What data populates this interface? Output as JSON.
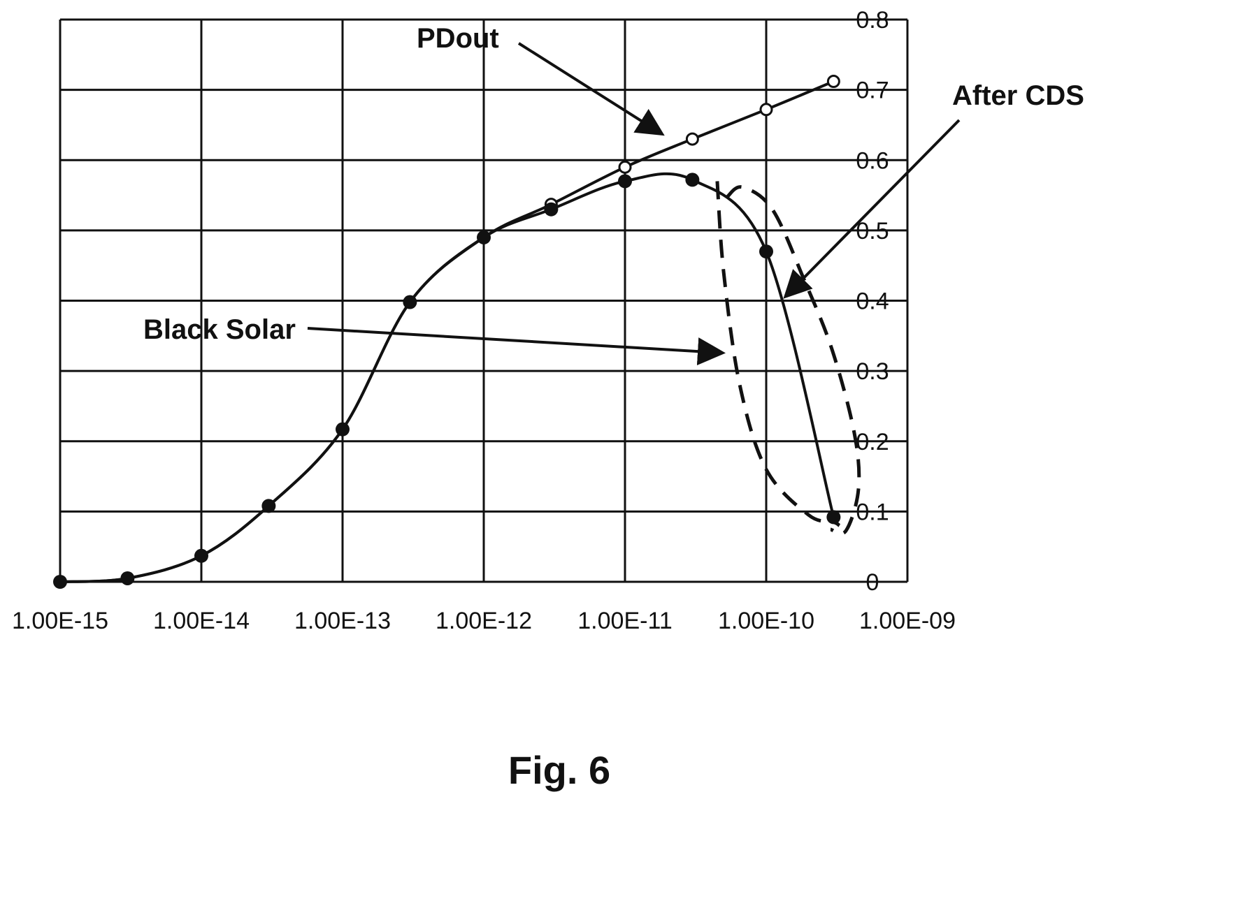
{
  "figure": {
    "caption": "Fig. 6"
  },
  "chart_data": {
    "type": "line",
    "x_scale": "log",
    "x_ticks": [
      "1.00E-15",
      "1.00E-14",
      "1.00E-13",
      "1.00E-12",
      "1.00E-11",
      "1.00E-10",
      "1.00E-09"
    ],
    "x_tick_values": [
      1e-15,
      1e-14,
      1e-13,
      1e-12,
      1e-11,
      1e-10,
      1e-09
    ],
    "xlim": [
      1e-15,
      1e-09
    ],
    "y_ticks": [
      "0",
      "0.1",
      "0.2",
      "0.3",
      "0.4",
      "0.5",
      "0.6",
      "0.7",
      "0.8"
    ],
    "y_tick_values": [
      0,
      0.1,
      0.2,
      0.3,
      0.4,
      0.5,
      0.6,
      0.7,
      0.8
    ],
    "ylim": [
      0,
      0.8
    ],
    "y_axis_side": "right",
    "grid": true,
    "series": [
      {
        "name": "PDout",
        "marker": "open-circle",
        "line": "solid",
        "x": [
          1e-15,
          3e-15,
          1e-14,
          3e-14,
          1e-13,
          3e-13,
          1e-12,
          3e-12,
          1e-11,
          3e-11,
          1e-10,
          3e-10
        ],
        "y": [
          0.0,
          0.005,
          0.037,
          0.108,
          0.217,
          0.398,
          0.49,
          0.537,
          0.59,
          0.63,
          0.672,
          0.712
        ]
      },
      {
        "name": "After CDS",
        "marker": "filled-circle",
        "line": "solid",
        "x": [
          1e-15,
          3e-15,
          1e-14,
          3e-14,
          1e-13,
          3e-13,
          1e-12,
          3e-12,
          1e-11,
          3e-11,
          1e-10,
          3e-10
        ],
        "y": [
          0.0,
          0.005,
          0.037,
          0.108,
          0.217,
          0.398,
          0.49,
          0.53,
          0.57,
          0.572,
          0.47,
          0.092
        ]
      },
      {
        "name": "Black Solar",
        "marker": "none",
        "line": "dashed",
        "x": [
          4.5e-11,
          5e-11,
          6.5e-11,
          1e-10,
          2e-10,
          3e-10,
          3.3e-10
        ],
        "y": [
          0.57,
          0.44,
          0.28,
          0.16,
          0.095,
          0.085,
          0.08
        ]
      }
    ],
    "annotations": [
      {
        "label": "PDout"
      },
      {
        "label": "After CDS"
      },
      {
        "label": "Black Solar"
      }
    ]
  },
  "colors": {
    "line": "#111111",
    "grid": "#111111",
    "background": "#ffffff"
  }
}
